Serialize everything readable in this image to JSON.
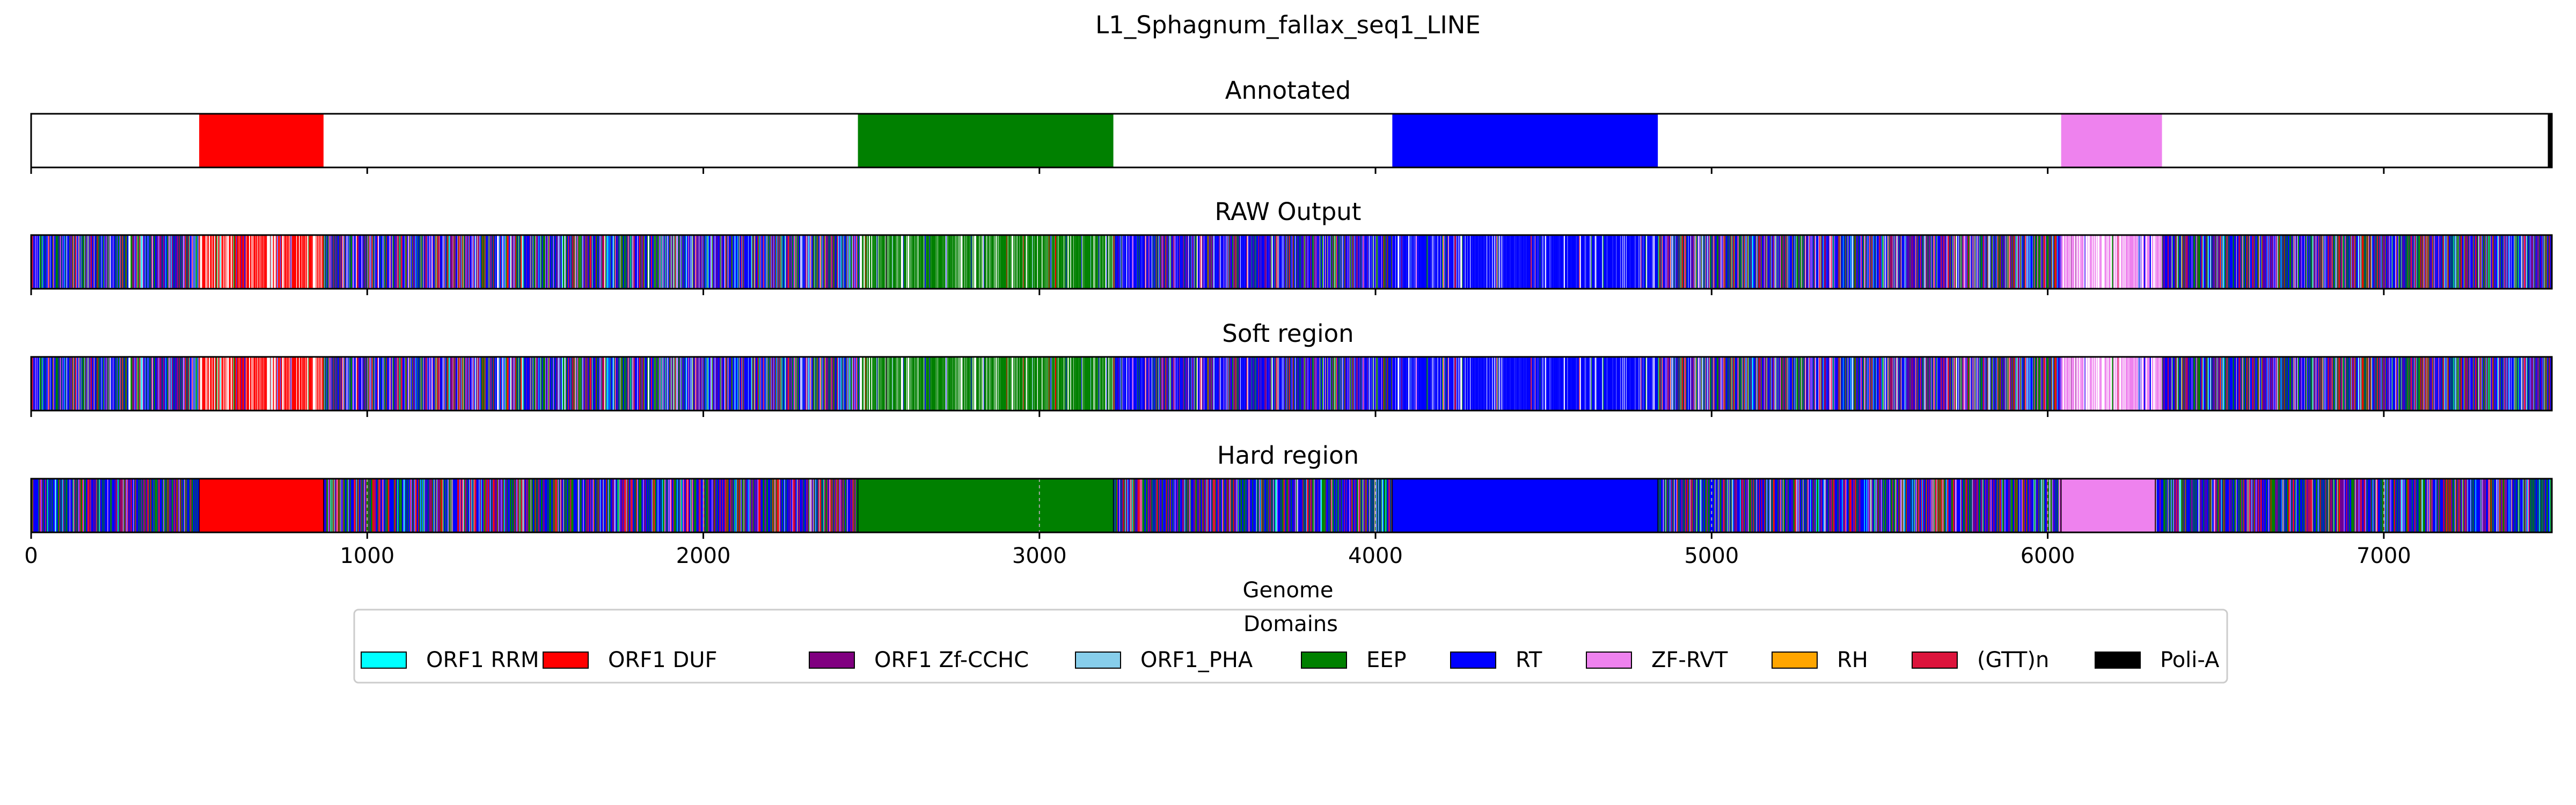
{
  "chart_data": {
    "type": "bar",
    "title": "L1_Sphagnum_fallax_seq1_LINE",
    "xlabel": "Genome",
    "xlim": [
      0,
      7500
    ],
    "xticks": [
      0,
      1000,
      2000,
      3000,
      4000,
      5000,
      6000,
      7000
    ],
    "xtick_labels": [
      "0",
      "1000",
      "2000",
      "3000",
      "4000",
      "5000",
      "6000",
      "7000"
    ],
    "legend": {
      "title": "Domains",
      "placement": "bottom-center",
      "entries": [
        {
          "name": "ORF1 RRM",
          "color": "#00ffff"
        },
        {
          "name": "ORF1 DUF",
          "color": "#ff0000"
        },
        {
          "name": "ORF1 Zf-CCHC",
          "color": "#800080"
        },
        {
          "name": "ORF1_PHA",
          "color": "#87ceeb"
        },
        {
          "name": "EEP",
          "color": "#008000"
        },
        {
          "name": "RT",
          "color": "#0000ff"
        },
        {
          "name": "ZF-RVT",
          "color": "#ee82ee"
        },
        {
          "name": "RH",
          "color": "#ffa500"
        },
        {
          "name": "(GTT)n",
          "color": "#dc143c"
        },
        {
          "name": "Poli-A",
          "color": "#000000"
        }
      ]
    },
    "tracks": [
      {
        "title": "Annotated",
        "segments": [
          {
            "start": 500,
            "end": 870,
            "domain": "ORF1 DUF"
          },
          {
            "start": 2460,
            "end": 3220,
            "domain": "EEP"
          },
          {
            "start": 4050,
            "end": 4840,
            "domain": "RT"
          },
          {
            "start": 6040,
            "end": 6340,
            "domain": "ZF-RVT"
          },
          {
            "start": 7488,
            "end": 7500,
            "domain": "Poli-A"
          }
        ]
      },
      {
        "title": "RAW Output",
        "style": "noisy",
        "seed": 11,
        "regions": [
          {
            "start": 0,
            "end": 500,
            "main": "mixed",
            "density": 0.95
          },
          {
            "start": 500,
            "end": 870,
            "main": "ORF1 DUF",
            "density": 0.55
          },
          {
            "start": 870,
            "end": 2460,
            "main": "mixed",
            "density": 0.9
          },
          {
            "start": 2460,
            "end": 3220,
            "main": "EEP",
            "density": 0.7
          },
          {
            "start": 3220,
            "end": 4050,
            "main": "mixed_rt",
            "density": 0.88
          },
          {
            "start": 4050,
            "end": 4840,
            "main": "RT",
            "density": 0.8
          },
          {
            "start": 4840,
            "end": 6040,
            "main": "mixed",
            "density": 0.92
          },
          {
            "start": 6040,
            "end": 6340,
            "main": "ZF-RVT",
            "density": 0.5
          },
          {
            "start": 6340,
            "end": 7500,
            "main": "mixed",
            "density": 0.93
          }
        ]
      },
      {
        "title": "Soft region",
        "style": "noisy",
        "seed": 11,
        "regions": [
          {
            "start": 0,
            "end": 500,
            "main": "mixed",
            "density": 0.95
          },
          {
            "start": 500,
            "end": 870,
            "main": "ORF1 DUF",
            "density": 0.55
          },
          {
            "start": 870,
            "end": 2460,
            "main": "mixed",
            "density": 0.9
          },
          {
            "start": 2460,
            "end": 3220,
            "main": "EEP",
            "density": 0.7
          },
          {
            "start": 3220,
            "end": 4050,
            "main": "mixed_rt",
            "density": 0.88
          },
          {
            "start": 4050,
            "end": 4840,
            "main": "RT",
            "density": 0.8
          },
          {
            "start": 4840,
            "end": 6040,
            "main": "mixed",
            "density": 0.92
          },
          {
            "start": 6040,
            "end": 6340,
            "main": "ZF-RVT",
            "density": 0.5
          },
          {
            "start": 6340,
            "end": 7500,
            "main": "mixed",
            "density": 0.93
          }
        ]
      },
      {
        "title": "Hard region",
        "style": "hard",
        "seed": 23,
        "solid_segments": [
          {
            "start": 500,
            "end": 870,
            "domain": "ORF1 DUF"
          },
          {
            "start": 2460,
            "end": 3220,
            "domain": "EEP"
          },
          {
            "start": 4050,
            "end": 4840,
            "domain": "RT"
          },
          {
            "start": 6040,
            "end": 6320,
            "domain": "ZF-RVT"
          }
        ],
        "mixed_regions": [
          {
            "start": 0,
            "end": 500
          },
          {
            "start": 870,
            "end": 2460
          },
          {
            "start": 3220,
            "end": 4050
          },
          {
            "start": 4840,
            "end": 6040
          },
          {
            "start": 6320,
            "end": 7500
          }
        ]
      }
    ]
  }
}
